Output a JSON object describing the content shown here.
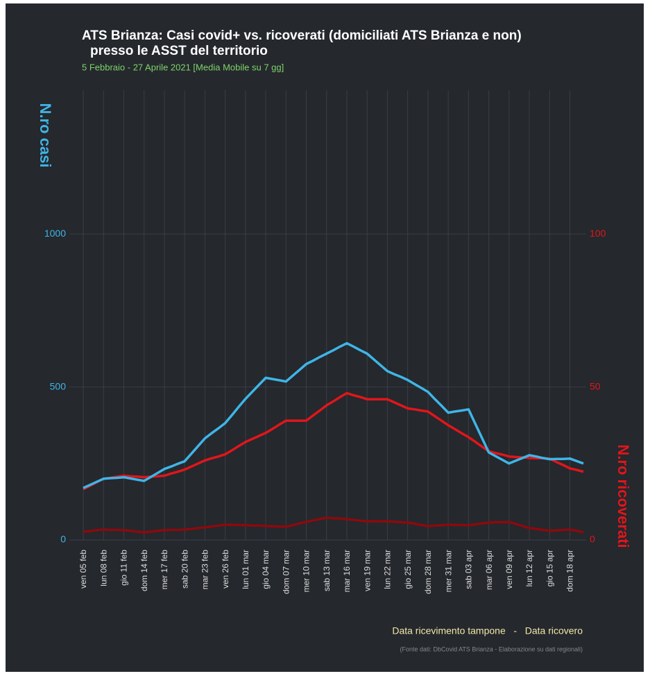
{
  "chart_data": {
    "type": "line",
    "title": [
      "ATS Brianza: Casi covid+ vs. ricoverati (domiciliati ATS Brianza e non)",
      "presso le ASST del territorio"
    ],
    "subtitle": "5 Febbraio - 27 Aprile 2021 [Media Mobile su 7 gg]",
    "x_label": "Data ricevimento tampone   -   Data ricovero",
    "y_label": "N.ro casi",
    "y2_label": "N.ro ricoverati",
    "source": "(Fonte dati: DbCovid ATS Brianza - Elaborazione su dati regionali)",
    "categories": [
      "ven 05 feb",
      null,
      null,
      "lun 08 feb",
      null,
      null,
      "gio 11 feb",
      null,
      null,
      "dom 14 feb",
      null,
      null,
      "mer 17 feb",
      null,
      null,
      "sab 20 feb",
      null,
      null,
      "mar 23 feb",
      null,
      null,
      "ven 26 feb",
      null,
      null,
      "lun 01 mar",
      null,
      null,
      "gio 04 mar",
      null,
      null,
      "dom 07 mar",
      null,
      null,
      "mer 10 mar",
      null,
      null,
      "sab 13 mar",
      null,
      null,
      "mar 16 mar",
      null,
      null,
      "ven 19 mar",
      null,
      null,
      "lun 22 mar",
      null,
      null,
      "gio 25 mar",
      null,
      null,
      "dom 28 mar",
      null,
      null,
      "mer 31 mar",
      null,
      null,
      "sab 03 apr",
      null,
      null,
      "mar 06 apr",
      null,
      null,
      "ven 09 apr",
      null,
      null,
      "lun 12 apr",
      null,
      null,
      "gio 15 apr",
      null,
      null,
      "dom 18 apr",
      null,
      null
    ],
    "series": [
      {
        "color": "#3fb5e8",
        "values": [
          170,
          180,
          190,
          200,
          202,
          203,
          205,
          201,
          197,
          193,
          206,
          219,
          232,
          240,
          249,
          257,
          282,
          307,
          332,
          349,
          365,
          382,
          408,
          435,
          461,
          484,
          507,
          530,
          526,
          522,
          518,
          537,
          556,
          575,
          586,
          598,
          609,
          620,
          632,
          643,
          632,
          620,
          609,
          590,
          571,
          552,
          542,
          533,
          523,
          510,
          497,
          484,
          461,
          439,
          416,
          420,
          423,
          427,
          380,
          333,
          286,
          274,
          262,
          250,
          259,
          268,
          277,
          273,
          268,
          264,
          265,
          265,
          266,
          258,
          250
        ]
      },
      {
        "color": "#e0161b",
        "axis": "y2",
        "values": [
          16.6,
          17.7,
          18.9,
          20,
          20.3,
          20.7,
          21,
          20.8,
          20.7,
          20.5,
          20.7,
          20.8,
          21,
          21.7,
          22.3,
          23,
          24,
          25,
          26,
          26.7,
          27.3,
          28,
          29.3,
          30.7,
          32,
          33,
          34,
          35,
          36.3,
          37.7,
          39,
          39,
          39,
          39,
          40.7,
          42.3,
          44,
          45.3,
          46.7,
          48,
          47.3,
          46.7,
          46,
          46,
          46,
          46,
          45,
          44,
          43,
          42.7,
          42.3,
          42,
          40.5,
          39,
          37.5,
          36.2,
          34.9,
          33.6,
          32.1,
          30.5,
          29,
          28.4,
          27.9,
          27.3,
          27.1,
          27,
          26.8,
          26.7,
          26.7,
          26.6,
          25.5,
          24.5,
          23.4,
          22.9,
          22.3
        ]
      },
      {
        "color": "#8b0a0e",
        "axis": "y2",
        "values": [
          2.7,
          2.9,
          3.2,
          3.4,
          3.3,
          3.3,
          3.2,
          3,
          2.7,
          2.5,
          2.7,
          3,
          3.2,
          3.3,
          3.3,
          3.4,
          3.6,
          3.9,
          4.1,
          4.4,
          4.7,
          5,
          4.9,
          4.9,
          4.8,
          4.7,
          4.7,
          4.6,
          4.5,
          4.4,
          4.3,
          4.8,
          5.4,
          5.9,
          6.4,
          6.8,
          7.3,
          7.1,
          7,
          6.8,
          6.6,
          6.3,
          6.1,
          6.1,
          6.1,
          6.1,
          6,
          5.8,
          5.7,
          5.3,
          4.9,
          4.5,
          4.7,
          4.8,
          5,
          4.9,
          4.9,
          4.8,
          5.1,
          5.4,
          5.7,
          5.8,
          5.8,
          5.9,
          5.2,
          4.6,
          3.9,
          3.6,
          3.3,
          3,
          3.1,
          3.3,
          3.4,
          3,
          2.5
        ]
      }
    ],
    "ylim": [
      0,
      1470
    ],
    "yticks": [
      0,
      500,
      1000
    ],
    "y2lim": [
      0,
      147
    ],
    "y2ticks": [
      0,
      50,
      100
    ],
    "y_color": "#3fb5e8",
    "y2_color": "#e0161b",
    "grid": true
  }
}
